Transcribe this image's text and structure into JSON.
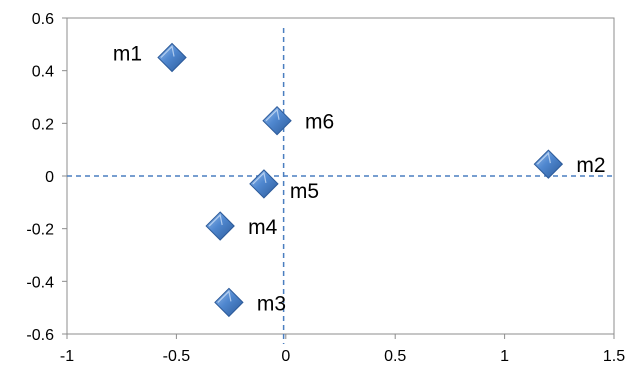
{
  "chart_data": {
    "type": "scatter",
    "title": "",
    "xlabel": "",
    "ylabel": "",
    "xlim": [
      -1,
      1.5
    ],
    "ylim": [
      -0.6,
      0.6
    ],
    "x_ticks": [
      -1,
      -0.5,
      0,
      0.5,
      1,
      1.5
    ],
    "y_ticks": [
      -0.6,
      -0.4,
      -0.2,
      0,
      0.2,
      0.4,
      0.6
    ],
    "x_tick_labels": [
      "-1",
      "-0.5",
      "0",
      "0.5",
      "1",
      "1.5"
    ],
    "y_tick_labels": [
      "-0.6",
      "-0.4",
      "-0.2",
      "0",
      "0.2",
      "0.4",
      "0.6"
    ],
    "grid": false,
    "reference_lines": {
      "x": -0.01,
      "y": 0.0,
      "style": "dashed"
    },
    "marker": "diamond",
    "marker_color": "#4a7ec0",
    "points": [
      {
        "label": "m1",
        "x": -0.52,
        "y": 0.45,
        "label_side": "left"
      },
      {
        "label": "m2",
        "x": 1.2,
        "y": 0.045,
        "label_side": "right"
      },
      {
        "label": "m3",
        "x": -0.26,
        "y": -0.48,
        "label_side": "right"
      },
      {
        "label": "m4",
        "x": -0.3,
        "y": -0.19,
        "label_side": "right"
      },
      {
        "label": "m5",
        "x": -0.1,
        "y": -0.03,
        "label_side": "right-below"
      },
      {
        "label": "m6",
        "x": -0.04,
        "y": 0.21,
        "label_side": "right"
      }
    ]
  }
}
